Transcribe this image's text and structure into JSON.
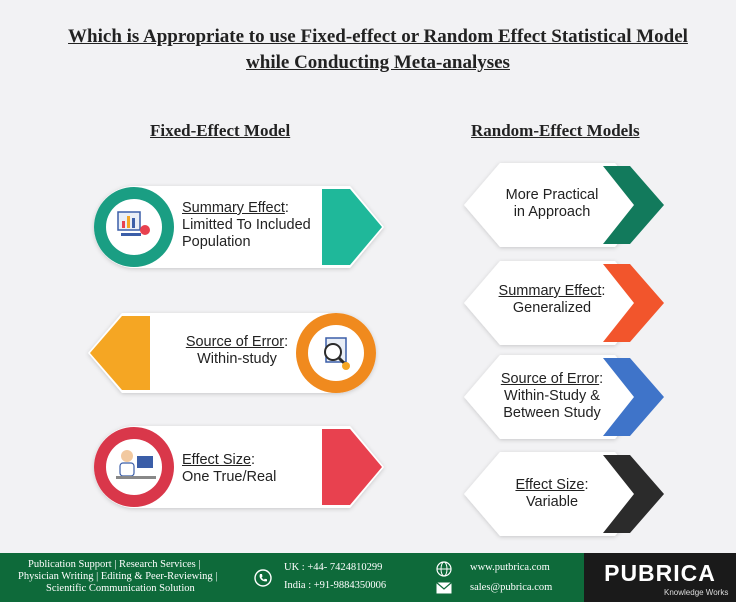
{
  "title": {
    "line1": "Which is Appropriate to use Fixed-effect or Random Effect Statistical Model",
    "line2": "while Conducting Meta-analyses"
  },
  "fixed": {
    "heading": "Fixed-Effect Model",
    "items": [
      {
        "key": "Summary Effect",
        "rest": ":",
        "line2": "Limitted To Included",
        "line3": "Population",
        "color": "#1fb89a",
        "icon": "charts-icon"
      },
      {
        "key": "Source of Error",
        "rest": ":",
        "line2": "Within-study",
        "color": "#f5a623",
        "icon": "magnifier-report-icon"
      },
      {
        "key": "Effect Size",
        "rest": ":",
        "line2": "One True/Real",
        "color": "#e8414f",
        "icon": "doctor-computer-icon"
      }
    ]
  },
  "random": {
    "heading": "Random-Effect Models",
    "items": [
      {
        "line1": "More Practical",
        "line2": "in Approach",
        "color": "#127a5c"
      },
      {
        "key": "Summary Effect",
        "rest": ":",
        "line2": "Generalized",
        "color": "#f2552c"
      },
      {
        "key": "Source of Error",
        "rest": ":",
        "line2": "Within-Study &",
        "line3": "Between Study",
        "color": "#3f74c9"
      },
      {
        "key": "Effect Size",
        "rest": ":",
        "line2": "Variable",
        "color": "#2b2b2b"
      }
    ]
  },
  "footer": {
    "services1": "Publication Support  |  Research Services  |",
    "services2": "Physician Writing  |  Editing & Peer-Reviewing  |",
    "services3": "Scientific  Communication Solution",
    "uk": "UK   : +44- 7424810299",
    "india": "India : +91-9884350006",
    "web": "www.putbrica.com",
    "email": "sales@pubrica.com",
    "logo": "PUBRICA",
    "tagline": "Knowledge Works"
  }
}
